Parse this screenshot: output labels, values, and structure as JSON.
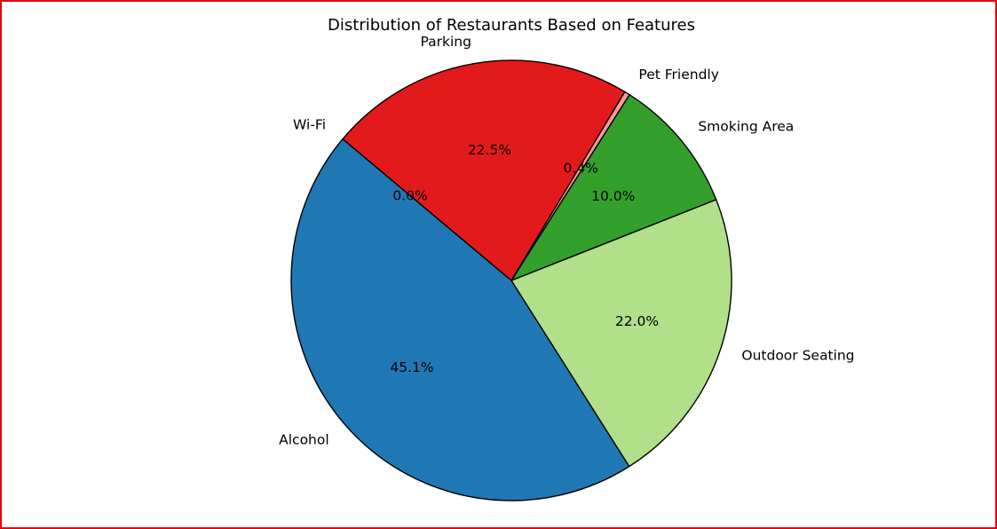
{
  "chart_data": {
    "type": "pie",
    "title": "Distribution of Restaurants Based on Features",
    "categories": [
      "Wi-Fi",
      "Alcohol",
      "Outdoor Seating",
      "Smoking Area",
      "Pet Friendly",
      "Parking"
    ],
    "values": [
      0.0,
      45.1,
      22.0,
      10.0,
      0.4,
      22.5
    ],
    "value_labels": [
      "0.0%",
      "45.1%",
      "22.0%",
      "10.0%",
      "0.4%",
      "22.5%"
    ],
    "colors": [
      "#a6cee3",
      "#1f78b4",
      "#b2df8a",
      "#33a02c",
      "#fb9a99",
      "#e31a1c"
    ],
    "start_angle_deg": 140,
    "direction": "counterclockwise",
    "edge_color": "#000000",
    "legend": "none",
    "frame_color": "#e8000b"
  }
}
